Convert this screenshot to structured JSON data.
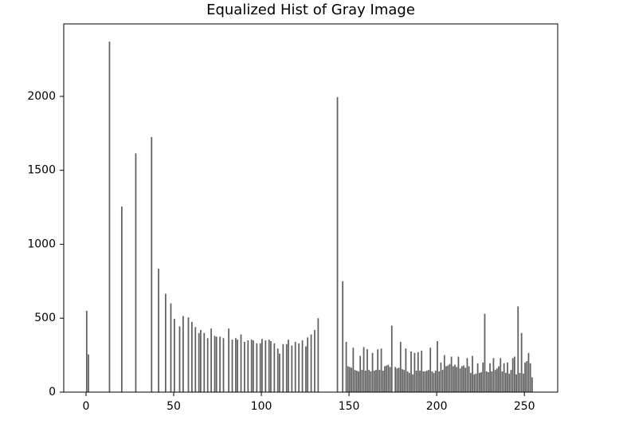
{
  "chart_data": {
    "type": "bar",
    "title": "Equalized Hist of Gray Image",
    "color": "#606060",
    "xlim": [
      -12.7,
      269
    ],
    "ylim": [
      0,
      2490
    ],
    "xticks": [
      0,
      50,
      100,
      150,
      200,
      250
    ],
    "yticks": [
      0,
      500,
      1000,
      1500,
      2000
    ],
    "x": [
      0,
      1,
      13,
      20,
      28,
      37,
      41,
      45,
      48,
      50,
      53,
      55,
      58,
      60,
      62,
      64,
      65,
      67,
      69,
      71,
      73,
      74,
      76,
      78,
      81,
      83,
      85,
      86,
      88,
      90,
      92,
      94,
      95,
      97,
      99,
      100,
      102,
      104,
      105,
      107,
      109,
      110,
      112,
      114,
      115,
      117,
      119,
      121,
      123,
      125,
      126,
      128,
      130,
      132,
      143,
      146,
      148,
      149,
      150,
      151,
      152,
      153,
      154,
      155,
      156,
      157,
      158,
      159,
      160,
      161,
      162,
      163,
      164,
      165,
      166,
      167,
      168,
      169,
      170,
      171,
      172,
      173,
      174,
      176,
      177,
      178,
      179,
      180,
      181,
      182,
      183,
      184,
      185,
      186,
      187,
      188,
      189,
      190,
      191,
      192,
      193,
      194,
      195,
      196,
      197,
      198,
      199,
      200,
      201,
      202,
      203,
      204,
      205,
      206,
      207,
      208,
      209,
      210,
      211,
      212,
      213,
      214,
      215,
      216,
      217,
      218,
      219,
      220,
      221,
      222,
      223,
      224,
      225,
      226,
      227,
      228,
      229,
      230,
      231,
      232,
      233,
      234,
      235,
      236,
      237,
      238,
      239,
      240,
      241,
      242,
      243,
      244,
      245,
      246,
      247,
      248,
      249,
      250,
      251,
      252,
      253,
      254
    ],
    "values": [
      550,
      255,
      2370,
      1255,
      1615,
      1725,
      835,
      665,
      600,
      495,
      445,
      515,
      505,
      475,
      440,
      400,
      420,
      400,
      365,
      430,
      380,
      375,
      375,
      365,
      430,
      355,
      365,
      355,
      390,
      340,
      350,
      355,
      350,
      330,
      330,
      360,
      350,
      355,
      345,
      330,
      295,
      260,
      325,
      325,
      355,
      315,
      340,
      330,
      350,
      310,
      370,
      390,
      420,
      500,
      1995,
      750,
      340,
      175,
      170,
      165,
      300,
      150,
      145,
      140,
      245,
      150,
      305,
      145,
      290,
      150,
      140,
      265,
      145,
      150,
      290,
      150,
      295,
      145,
      175,
      180,
      185,
      170,
      450,
      170,
      160,
      165,
      340,
      155,
      150,
      295,
      140,
      130,
      275,
      120,
      265,
      145,
      270,
      145,
      280,
      140,
      140,
      145,
      150,
      300,
      140,
      130,
      145,
      345,
      140,
      200,
      150,
      250,
      175,
      180,
      190,
      240,
      175,
      185,
      170,
      240,
      160,
      175,
      180,
      165,
      230,
      175,
      130,
      245,
      120,
      125,
      195,
      130,
      135,
      200,
      530,
      140,
      135,
      195,
      140,
      230,
      150,
      160,
      175,
      230,
      140,
      195,
      130,
      200,
      125,
      150,
      230,
      240,
      120,
      580,
      130,
      400,
      125,
      200,
      210,
      265,
      195,
      100
    ]
  }
}
